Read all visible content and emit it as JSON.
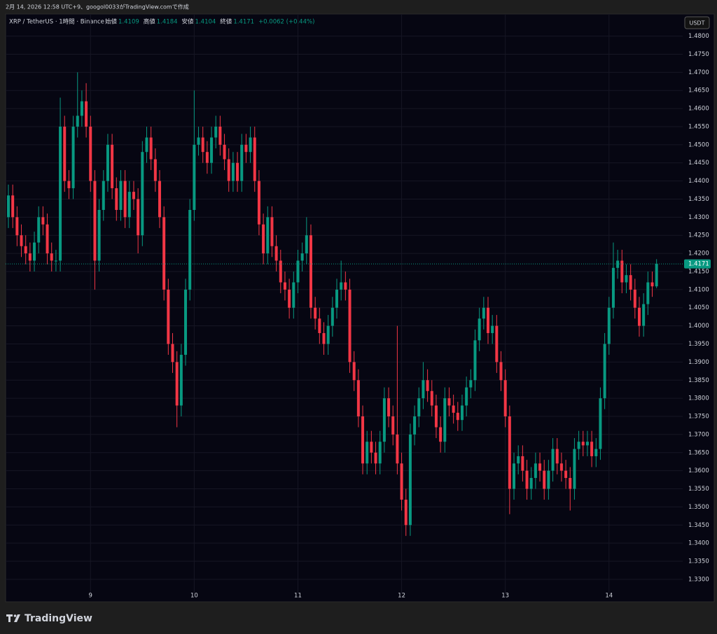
{
  "chart_data": {
    "type": "candlestick",
    "caption": "2月 14, 2026 12:58 UTC+9、googol0033がTradingView.comで作成",
    "symbol": "XRP / TetherUS · 1時間 · Binance",
    "ohlc_labels": [
      "始値",
      "高値",
      "安値",
      "終値"
    ],
    "ohlc_values": [
      "1.4109",
      "1.4184",
      "1.4104",
      "1.4171"
    ],
    "change": "+0.0062 (+0.44%)",
    "currency": "USDT",
    "last_price_label": "1.4171",
    "logo": "TradingView",
    "up_color": "#089981",
    "down_color": "#f23645",
    "grid": true,
    "ylim": [
      1.3238,
      1.4861
    ],
    "yticks": [
      {
        "value": 1.48,
        "label": "1.4800"
      },
      {
        "value": 1.475,
        "label": "1.4750"
      },
      {
        "value": 1.47,
        "label": "1.4700"
      },
      {
        "value": 1.465,
        "label": "1.4650"
      },
      {
        "value": 1.46,
        "label": "1.4600"
      },
      {
        "value": 1.455,
        "label": "1.4550"
      },
      {
        "value": 1.45,
        "label": "1.4500"
      },
      {
        "value": 1.445,
        "label": "1.4450"
      },
      {
        "value": 1.44,
        "label": "1.4400"
      },
      {
        "value": 1.435,
        "label": "1.4350"
      },
      {
        "value": 1.43,
        "label": "1.4300"
      },
      {
        "value": 1.425,
        "label": "1.4250"
      },
      {
        "value": 1.42,
        "label": "1.4200"
      },
      {
        "value": 1.415,
        "label": "1.4150"
      },
      {
        "value": 1.41,
        "label": "1.4100"
      },
      {
        "value": 1.405,
        "label": "1.4050"
      },
      {
        "value": 1.4,
        "label": "1.4000"
      },
      {
        "value": 1.395,
        "label": "1.3950"
      },
      {
        "value": 1.39,
        "label": "1.3900"
      },
      {
        "value": 1.385,
        "label": "1.3850"
      },
      {
        "value": 1.38,
        "label": "1.3800"
      },
      {
        "value": 1.375,
        "label": "1.3750"
      },
      {
        "value": 1.37,
        "label": "1.3700"
      },
      {
        "value": 1.365,
        "label": "1.3650"
      },
      {
        "value": 1.36,
        "label": "1.3600"
      },
      {
        "value": 1.355,
        "label": "1.3550"
      },
      {
        "value": 1.35,
        "label": "1.3500"
      },
      {
        "value": 1.345,
        "label": "1.3450"
      },
      {
        "value": 1.34,
        "label": "1.3400"
      },
      {
        "value": 1.335,
        "label": "1.3350"
      },
      {
        "value": 1.33,
        "label": "1.3300"
      }
    ],
    "xlim": [
      -0.65,
      156.05
    ],
    "xticks": [
      {
        "value": 19,
        "label": "9"
      },
      {
        "value": 43,
        "label": "10"
      },
      {
        "value": 67,
        "label": "11"
      },
      {
        "value": 91,
        "label": "12"
      },
      {
        "value": 115,
        "label": "13"
      },
      {
        "value": 139,
        "label": "14"
      }
    ],
    "ohlc": [
      [
        1.43,
        1.439,
        1.427,
        1.436
      ],
      [
        1.436,
        1.439,
        1.427,
        1.43
      ],
      [
        1.43,
        1.433,
        1.422,
        1.425
      ],
      [
        1.425,
        1.428,
        1.419,
        1.422
      ],
      [
        1.422,
        1.425,
        1.417,
        1.42
      ],
      [
        1.42,
        1.423,
        1.415,
        1.418
      ],
      [
        1.418,
        1.426,
        1.415,
        1.423
      ],
      [
        1.423,
        1.433,
        1.42,
        1.43
      ],
      [
        1.43,
        1.433,
        1.425,
        1.428
      ],
      [
        1.428,
        1.431,
        1.417,
        1.42
      ],
      [
        1.42,
        1.423,
        1.415,
        1.418
      ],
      [
        1.418,
        1.421,
        1.415,
        1.418
      ],
      [
        1.418,
        1.463,
        1.415,
        1.455
      ],
      [
        1.455,
        1.458,
        1.437,
        1.44
      ],
      [
        1.44,
        1.443,
        1.435,
        1.438
      ],
      [
        1.438,
        1.458,
        1.435,
        1.455
      ],
      [
        1.455,
        1.47,
        1.452,
        1.458
      ],
      [
        1.458,
        1.465,
        1.455,
        1.462
      ],
      [
        1.462,
        1.467,
        1.452,
        1.455
      ],
      [
        1.455,
        1.458,
        1.437,
        1.44
      ],
      [
        1.44,
        1.443,
        1.41,
        1.418
      ],
      [
        1.418,
        1.435,
        1.415,
        1.432
      ],
      [
        1.432,
        1.443,
        1.429,
        1.44
      ],
      [
        1.44,
        1.453,
        1.437,
        1.45
      ],
      [
        1.45,
        1.453,
        1.435,
        1.438
      ],
      [
        1.438,
        1.441,
        1.429,
        1.432
      ],
      [
        1.432,
        1.443,
        1.429,
        1.44
      ],
      [
        1.44,
        1.443,
        1.427,
        1.43
      ],
      [
        1.43,
        1.44,
        1.427,
        1.437
      ],
      [
        1.437,
        1.44,
        1.432,
        1.435
      ],
      [
        1.435,
        1.438,
        1.42,
        1.425
      ],
      [
        1.425,
        1.451,
        1.422,
        1.448
      ],
      [
        1.448,
        1.455,
        1.445,
        1.452
      ],
      [
        1.452,
        1.455,
        1.443,
        1.446
      ],
      [
        1.446,
        1.449,
        1.437,
        1.44
      ],
      [
        1.44,
        1.443,
        1.427,
        1.43
      ],
      [
        1.43,
        1.433,
        1.407,
        1.41
      ],
      [
        1.41,
        1.413,
        1.392,
        1.395
      ],
      [
        1.395,
        1.398,
        1.387,
        1.39
      ],
      [
        1.39,
        1.393,
        1.372,
        1.378
      ],
      [
        1.378,
        1.395,
        1.375,
        1.392
      ],
      [
        1.392,
        1.413,
        1.389,
        1.41
      ],
      [
        1.41,
        1.435,
        1.407,
        1.432
      ],
      [
        1.432,
        1.465,
        1.429,
        1.45
      ],
      [
        1.45,
        1.455,
        1.447,
        1.452
      ],
      [
        1.452,
        1.455,
        1.445,
        1.448
      ],
      [
        1.448,
        1.451,
        1.442,
        1.445
      ],
      [
        1.445,
        1.455,
        1.442,
        1.452
      ],
      [
        1.452,
        1.458,
        1.449,
        1.455
      ],
      [
        1.455,
        1.458,
        1.447,
        1.45
      ],
      [
        1.45,
        1.453,
        1.443,
        1.446
      ],
      [
        1.446,
        1.449,
        1.437,
        1.44
      ],
      [
        1.44,
        1.448,
        1.437,
        1.445
      ],
      [
        1.445,
        1.448,
        1.437,
        1.44
      ],
      [
        1.44,
        1.453,
        1.437,
        1.45
      ],
      [
        1.45,
        1.453,
        1.445,
        1.448
      ],
      [
        1.448,
        1.455,
        1.445,
        1.452
      ],
      [
        1.452,
        1.455,
        1.437,
        1.44
      ],
      [
        1.44,
        1.443,
        1.425,
        1.428
      ],
      [
        1.428,
        1.431,
        1.417,
        1.42
      ],
      [
        1.42,
        1.433,
        1.417,
        1.43
      ],
      [
        1.43,
        1.433,
        1.419,
        1.422
      ],
      [
        1.422,
        1.425,
        1.415,
        1.418
      ],
      [
        1.418,
        1.421,
        1.409,
        1.412
      ],
      [
        1.412,
        1.415,
        1.407,
        1.41
      ],
      [
        1.41,
        1.413,
        1.402,
        1.405
      ],
      [
        1.405,
        1.415,
        1.402,
        1.412
      ],
      [
        1.412,
        1.421,
        1.409,
        1.418
      ],
      [
        1.418,
        1.423,
        1.415,
        1.42
      ],
      [
        1.42,
        1.43,
        1.417,
        1.425
      ],
      [
        1.425,
        1.428,
        1.402,
        1.405
      ],
      [
        1.405,
        1.408,
        1.399,
        1.402
      ],
      [
        1.402,
        1.405,
        1.395,
        1.398
      ],
      [
        1.398,
        1.401,
        1.392,
        1.395
      ],
      [
        1.395,
        1.403,
        1.392,
        1.4
      ],
      [
        1.4,
        1.408,
        1.397,
        1.405
      ],
      [
        1.405,
        1.413,
        1.402,
        1.41
      ],
      [
        1.41,
        1.418,
        1.407,
        1.412
      ],
      [
        1.412,
        1.415,
        1.407,
        1.41
      ],
      [
        1.41,
        1.413,
        1.387,
        1.39
      ],
      [
        1.39,
        1.393,
        1.382,
        1.385
      ],
      [
        1.385,
        1.388,
        1.372,
        1.375
      ],
      [
        1.375,
        1.378,
        1.359,
        1.362
      ],
      [
        1.362,
        1.371,
        1.359,
        1.368
      ],
      [
        1.368,
        1.371,
        1.362,
        1.365
      ],
      [
        1.365,
        1.368,
        1.359,
        1.362
      ],
      [
        1.362,
        1.371,
        1.359,
        1.368
      ],
      [
        1.368,
        1.383,
        1.365,
        1.38
      ],
      [
        1.38,
        1.383,
        1.372,
        1.375
      ],
      [
        1.375,
        1.378,
        1.367,
        1.37
      ],
      [
        1.37,
        1.4,
        1.359,
        1.362
      ],
      [
        1.362,
        1.365,
        1.349,
        1.352
      ],
      [
        1.352,
        1.355,
        1.342,
        1.345
      ],
      [
        1.345,
        1.373,
        1.342,
        1.37
      ],
      [
        1.37,
        1.378,
        1.367,
        1.375
      ],
      [
        1.375,
        1.383,
        1.372,
        1.38
      ],
      [
        1.38,
        1.39,
        1.377,
        1.385
      ],
      [
        1.385,
        1.388,
        1.379,
        1.382
      ],
      [
        1.382,
        1.385,
        1.375,
        1.378
      ],
      [
        1.378,
        1.381,
        1.369,
        1.372
      ],
      [
        1.372,
        1.375,
        1.365,
        1.368
      ],
      [
        1.368,
        1.383,
        1.365,
        1.38
      ],
      [
        1.38,
        1.383,
        1.375,
        1.378
      ],
      [
        1.378,
        1.381,
        1.373,
        1.376
      ],
      [
        1.376,
        1.379,
        1.371,
        1.374
      ],
      [
        1.374,
        1.381,
        1.371,
        1.378
      ],
      [
        1.378,
        1.386,
        1.375,
        1.383
      ],
      [
        1.383,
        1.388,
        1.38,
        1.385
      ],
      [
        1.385,
        1.399,
        1.382,
        1.396
      ],
      [
        1.396,
        1.405,
        1.393,
        1.402
      ],
      [
        1.402,
        1.408,
        1.399,
        1.405
      ],
      [
        1.405,
        1.408,
        1.395,
        1.398
      ],
      [
        1.398,
        1.403,
        1.395,
        1.4
      ],
      [
        1.4,
        1.403,
        1.387,
        1.39
      ],
      [
        1.39,
        1.393,
        1.382,
        1.385
      ],
      [
        1.385,
        1.388,
        1.372,
        1.375
      ],
      [
        1.375,
        1.378,
        1.348,
        1.355
      ],
      [
        1.355,
        1.365,
        1.352,
        1.362
      ],
      [
        1.362,
        1.367,
        1.359,
        1.364
      ],
      [
        1.364,
        1.367,
        1.357,
        1.36
      ],
      [
        1.36,
        1.363,
        1.352,
        1.355
      ],
      [
        1.355,
        1.361,
        1.352,
        1.358
      ],
      [
        1.358,
        1.365,
        1.355,
        1.362
      ],
      [
        1.362,
        1.365,
        1.357,
        1.36
      ],
      [
        1.36,
        1.363,
        1.352,
        1.355
      ],
      [
        1.355,
        1.363,
        1.352,
        1.36
      ],
      [
        1.36,
        1.369,
        1.357,
        1.366
      ],
      [
        1.366,
        1.369,
        1.359,
        1.362
      ],
      [
        1.362,
        1.365,
        1.357,
        1.36
      ],
      [
        1.36,
        1.363,
        1.355,
        1.358
      ],
      [
        1.358,
        1.361,
        1.349,
        1.355
      ],
      [
        1.355,
        1.369,
        1.352,
        1.366
      ],
      [
        1.366,
        1.371,
        1.363,
        1.368
      ],
      [
        1.368,
        1.371,
        1.364,
        1.367
      ],
      [
        1.367,
        1.371,
        1.364,
        1.368
      ],
      [
        1.368,
        1.371,
        1.361,
        1.364
      ],
      [
        1.364,
        1.369,
        1.361,
        1.366
      ],
      [
        1.366,
        1.383,
        1.363,
        1.38
      ],
      [
        1.38,
        1.398,
        1.377,
        1.395
      ],
      [
        1.395,
        1.408,
        1.392,
        1.405
      ],
      [
        1.405,
        1.423,
        1.402,
        1.416
      ],
      [
        1.416,
        1.421,
        1.413,
        1.418
      ],
      [
        1.418,
        1.421,
        1.409,
        1.412
      ],
      [
        1.412,
        1.417,
        1.409,
        1.414
      ],
      [
        1.414,
        1.417,
        1.407,
        1.41
      ],
      [
        1.41,
        1.413,
        1.402,
        1.405
      ],
      [
        1.405,
        1.408,
        1.397,
        1.4
      ],
      [
        1.4,
        1.409,
        1.397,
        1.406
      ],
      [
        1.406,
        1.415,
        1.403,
        1.412
      ],
      [
        1.412,
        1.415,
        1.408,
        1.4109
      ],
      [
        1.4109,
        1.4184,
        1.4104,
        1.4171
      ]
    ]
  }
}
